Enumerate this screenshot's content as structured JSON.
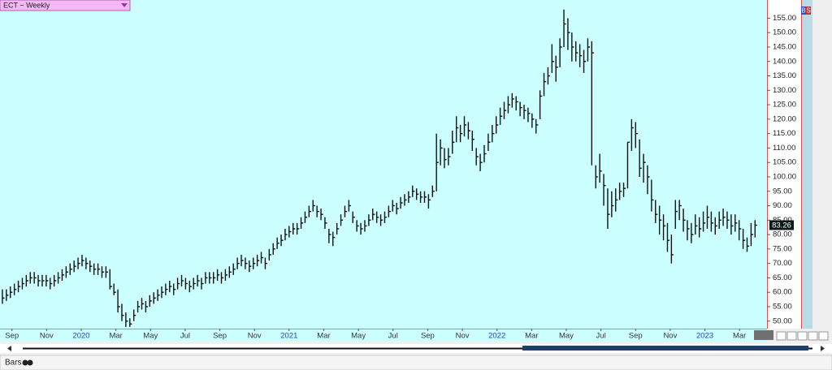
{
  "chart_data": {
    "type": "ohlc",
    "title": "ECT ~ Weekly",
    "chart_style": "Bars",
    "side_buttons": [
      "B",
      "S"
    ],
    "color": "#111111",
    "xlim": [
      -0.6,
      192
    ],
    "xticks": [
      {
        "value": 2.4,
        "label": "Sep"
      },
      {
        "value": 11.1,
        "label": "Nov"
      },
      {
        "value": 19.8,
        "label": "2020"
      },
      {
        "value": 28.5,
        "label": "Mar"
      },
      {
        "value": 37.2,
        "label": "May"
      },
      {
        "value": 45.9,
        "label": "Jul"
      },
      {
        "value": 54.6,
        "label": "Sep"
      },
      {
        "value": 63.3,
        "label": "Nov"
      },
      {
        "value": 72.0,
        "label": "2021"
      },
      {
        "value": 80.7,
        "label": "Mar"
      },
      {
        "value": 89.4,
        "label": "May"
      },
      {
        "value": 98.1,
        "label": "Jul"
      },
      {
        "value": 106.8,
        "label": "Sep"
      },
      {
        "value": 115.5,
        "label": "Nov"
      },
      {
        "value": 124.2,
        "label": "2022"
      },
      {
        "value": 132.9,
        "label": "Mar"
      },
      {
        "value": 141.6,
        "label": "May"
      },
      {
        "value": 150.3,
        "label": "Jul"
      },
      {
        "value": 159.0,
        "label": "Sep"
      },
      {
        "value": 167.7,
        "label": "Nov"
      },
      {
        "value": 176.4,
        "label": "2023"
      },
      {
        "value": 185.1,
        "label": "Mar"
      }
    ],
    "ylim": [
      47.4,
      161.3
    ],
    "yticks": [
      {
        "value": 50,
        "label": "50.00"
      },
      {
        "value": 55,
        "label": "55.00"
      },
      {
        "value": 60,
        "label": "60.00"
      },
      {
        "value": 65,
        "label": "65.00"
      },
      {
        "value": 70,
        "label": "70.00"
      },
      {
        "value": 75,
        "label": "75.00"
      },
      {
        "value": 80,
        "label": "80.00"
      },
      {
        "value": 85,
        "label": "85.00"
      },
      {
        "value": 90,
        "label": "90.00"
      },
      {
        "value": 95,
        "label": "95.00"
      },
      {
        "value": 100,
        "label": "100.00"
      },
      {
        "value": 105,
        "label": "105.00"
      },
      {
        "value": 110,
        "label": "110.00"
      },
      {
        "value": 115,
        "label": "115.00"
      },
      {
        "value": 120,
        "label": "120.00"
      },
      {
        "value": 125,
        "label": "125.00"
      },
      {
        "value": 130,
        "label": "130.00"
      },
      {
        "value": 135,
        "label": "135.00"
      },
      {
        "value": 140,
        "label": "140.00"
      },
      {
        "value": 145,
        "label": "145.00"
      },
      {
        "value": 150,
        "label": "150.00"
      },
      {
        "value": 155,
        "label": "155.00"
      }
    ],
    "x": [
      0,
      1,
      2,
      3,
      4,
      5,
      6,
      7,
      8,
      9,
      10,
      11,
      12,
      13,
      14,
      15,
      16,
      17,
      18,
      19,
      20,
      21,
      22,
      23,
      24,
      25,
      26,
      27,
      28,
      29,
      30,
      31,
      32,
      33,
      34,
      35,
      36,
      37,
      38,
      39,
      40,
      41,
      42,
      43,
      44,
      45,
      46,
      47,
      48,
      49,
      50,
      51,
      52,
      53,
      54,
      55,
      56,
      57,
      58,
      59,
      60,
      61,
      62,
      63,
      64,
      65,
      66,
      67,
      68,
      69,
      70,
      71,
      72,
      73,
      74,
      75,
      76,
      77,
      78,
      79,
      80,
      81,
      82,
      83,
      84,
      85,
      86,
      87,
      88,
      89,
      90,
      91,
      92,
      93,
      94,
      95,
      96,
      97,
      98,
      99,
      100,
      101,
      102,
      103,
      104,
      105,
      106,
      107,
      108,
      109,
      110,
      111,
      112,
      113,
      114,
      115,
      116,
      117,
      118,
      119,
      120,
      121,
      122,
      123,
      124,
      125,
      126,
      127,
      128,
      129,
      130,
      131,
      132,
      133,
      134,
      135,
      136,
      137,
      138,
      139,
      140,
      141,
      142,
      143,
      144,
      145,
      146,
      147,
      148,
      149,
      150,
      151,
      152,
      153,
      154,
      155,
      156,
      157,
      158,
      159,
      160,
      161,
      162,
      163,
      164,
      165,
      166,
      167,
      168,
      169,
      170,
      171,
      172,
      173,
      174,
      175,
      176,
      177,
      178,
      179,
      180,
      181,
      182,
      183,
      184,
      185,
      186,
      187,
      188,
      189
    ],
    "high": [
      61,
      61,
      62,
      63,
      64,
      65,
      66,
      67,
      67,
      66,
      66,
      66,
      65,
      66,
      67,
      68,
      69,
      70,
      71,
      72,
      73,
      72,
      71,
      70,
      70,
      69,
      69,
      68,
      63,
      61,
      56,
      53,
      51,
      54,
      57,
      58,
      57,
      59,
      60,
      61,
      62,
      63,
      64,
      63,
      65,
      66,
      65,
      64,
      65,
      66,
      65,
      67,
      67,
      67,
      68,
      67,
      68,
      69,
      70,
      72,
      73,
      72,
      71,
      72,
      73,
      74,
      72,
      75,
      77,
      79,
      80,
      82,
      83,
      84,
      84,
      86,
      88,
      90,
      92,
      90,
      89,
      86,
      82,
      81,
      84,
      87,
      90,
      92,
      88,
      85,
      84,
      85,
      87,
      89,
      88,
      87,
      88,
      90,
      92,
      91,
      93,
      94,
      95,
      97,
      96,
      95,
      95,
      94,
      97,
      115,
      113,
      110,
      110,
      116,
      121,
      118,
      121,
      119,
      116,
      110,
      108,
      111,
      115,
      118,
      121,
      124,
      126,
      128,
      129,
      128,
      126,
      125,
      124,
      122,
      120,
      130,
      136,
      138,
      146,
      142,
      148,
      158,
      155,
      150,
      147,
      146,
      144,
      148,
      147,
      104,
      108,
      101,
      96,
      95,
      96,
      98,
      98,
      112,
      120,
      119,
      113,
      108,
      104,
      99,
      92,
      90,
      87,
      84,
      80,
      92,
      92,
      89,
      85,
      84,
      87,
      86,
      88,
      90,
      88,
      86,
      88,
      89,
      88,
      87,
      87,
      85,
      82,
      79,
      84,
      85
    ],
    "low": [
      56,
      57,
      58,
      59,
      60,
      61,
      62,
      63,
      63,
      62,
      62,
      62,
      61,
      62,
      63,
      64,
      65,
      66,
      67,
      68,
      69,
      68,
      67,
      66,
      66,
      65,
      65,
      61,
      59,
      53,
      50,
      48,
      48,
      50,
      53,
      54,
      53,
      55,
      56,
      57,
      58,
      59,
      60,
      59,
      61,
      62,
      61,
      60,
      61,
      62,
      61,
      63,
      63,
      63,
      64,
      63,
      64,
      65,
      66,
      68,
      69,
      68,
      67,
      68,
      69,
      70,
      68,
      71,
      73,
      75,
      76,
      78,
      79,
      80,
      80,
      82,
      84,
      86,
      88,
      86,
      85,
      82,
      77,
      76,
      80,
      83,
      86,
      88,
      84,
      81,
      80,
      81,
      83,
      85,
      84,
      83,
      84,
      86,
      88,
      87,
      89,
      90,
      91,
      93,
      92,
      91,
      91,
      89,
      93,
      95,
      104,
      103,
      104,
      108,
      112,
      112,
      114,
      113,
      109,
      104,
      102,
      105,
      109,
      112,
      115,
      118,
      120,
      122,
      124,
      123,
      121,
      120,
      119,
      117,
      115,
      120,
      128,
      132,
      136,
      133,
      138,
      145,
      144,
      140,
      140,
      138,
      136,
      140,
      104,
      96,
      98,
      90,
      82,
      86,
      88,
      92,
      93,
      96,
      109,
      110,
      100,
      98,
      94,
      88,
      84,
      80,
      78,
      74,
      70,
      82,
      85,
      81,
      78,
      77,
      80,
      79,
      81,
      82,
      81,
      80,
      82,
      83,
      82,
      80,
      81,
      78,
      75,
      74,
      76,
      79
    ],
    "close": [
      58,
      59,
      60,
      61,
      62,
      63,
      64,
      65,
      65,
      64,
      64,
      64,
      63,
      64,
      65,
      66,
      67,
      68,
      69,
      70,
      71,
      70,
      69,
      68,
      68,
      67,
      67,
      62,
      60,
      55,
      52,
      50,
      49,
      52,
      55,
      56,
      55,
      57,
      58,
      59,
      60,
      61,
      62,
      61,
      63,
      64,
      63,
      62,
      63,
      64,
      63,
      65,
      65,
      65,
      66,
      65,
      66,
      67,
      68,
      70,
      71,
      70,
      69,
      70,
      71,
      72,
      70,
      73,
      75,
      77,
      78,
      80,
      81,
      82,
      82,
      84,
      86,
      88,
      90,
      88,
      87,
      84,
      80,
      79,
      82,
      85,
      88,
      90,
      86,
      83,
      82,
      83,
      85,
      87,
      86,
      85,
      86,
      88,
      90,
      89,
      91,
      92,
      93,
      95,
      94,
      93,
      93,
      92,
      95,
      105,
      110,
      106,
      107,
      112,
      117,
      115,
      118,
      116,
      113,
      107,
      105,
      108,
      112,
      115,
      118,
      121,
      123,
      125,
      127,
      126,
      124,
      123,
      122,
      120,
      118,
      128,
      133,
      135,
      140,
      138,
      145,
      153,
      150,
      145,
      143,
      142,
      140,
      145,
      143,
      100,
      102,
      97,
      87,
      90,
      92,
      95,
      96,
      112,
      117,
      115,
      103,
      105,
      100,
      92,
      87,
      85,
      83,
      78,
      73,
      88,
      90,
      85,
      82,
      80,
      83,
      82,
      84,
      86,
      84,
      83,
      85,
      86,
      85,
      83,
      84,
      82,
      78,
      76,
      80,
      83.26
    ]
  }
}
